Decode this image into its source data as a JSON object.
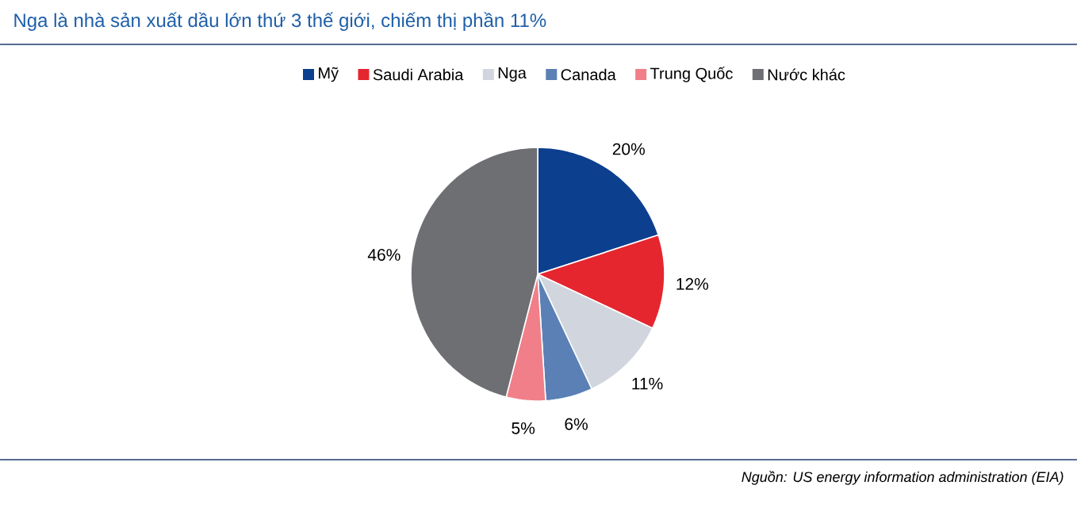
{
  "chart_data": {
    "type": "pie",
    "title": "Nga là nhà sản xuất dầu lớn thứ 3 thế giới, chiếm thị phần 11%",
    "categories": [
      "Mỹ",
      "Saudi Arabia",
      "Nga",
      "Canada",
      "Trung Quốc",
      "Nước khác"
    ],
    "values": [
      20,
      12,
      11,
      6,
      5,
      46
    ],
    "value_labels": [
      "20%",
      "12%",
      "11%",
      "6%",
      "5%",
      "46%"
    ],
    "colors": [
      "#0d3f8f",
      "#e5262f",
      "#d1d6de",
      "#5b80b6",
      "#f07f89",
      "#6e6f73"
    ],
    "legend": "top",
    "annotations": [
      "Nguồn: US energy information administration (EIA)"
    ]
  }
}
